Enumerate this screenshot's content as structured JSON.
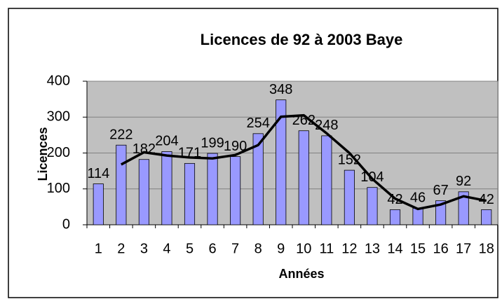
{
  "chart_data": {
    "type": "bar",
    "title": "Licences de 92 à 2003 Baye",
    "x_label": "Années",
    "y_label": "Licences",
    "categories": [
      "1",
      "2",
      "3",
      "4",
      "5",
      "6",
      "7",
      "8",
      "9",
      "10",
      "11",
      "12",
      "13",
      "14",
      "15",
      "16",
      "17",
      "18"
    ],
    "series": [
      {
        "type": "bar",
        "color": "#9999ff",
        "values": [
          114,
          222,
          182,
          204,
          171,
          199,
          190,
          254,
          348,
          262,
          248,
          152,
          104,
          42,
          46,
          67,
          92,
          42
        ]
      },
      {
        "type": "line",
        "color": "#000000",
        "values": [
          null,
          168,
          202,
          193,
          187.5,
          185,
          194.5,
          222,
          301,
          305,
          255,
          200,
          128,
          73,
          44,
          56.5,
          79.5,
          67
        ]
      }
    ],
    "ylim": [
      0,
      400
    ],
    "yticks": [
      0,
      100,
      200,
      300,
      400
    ],
    "grid": true
  }
}
